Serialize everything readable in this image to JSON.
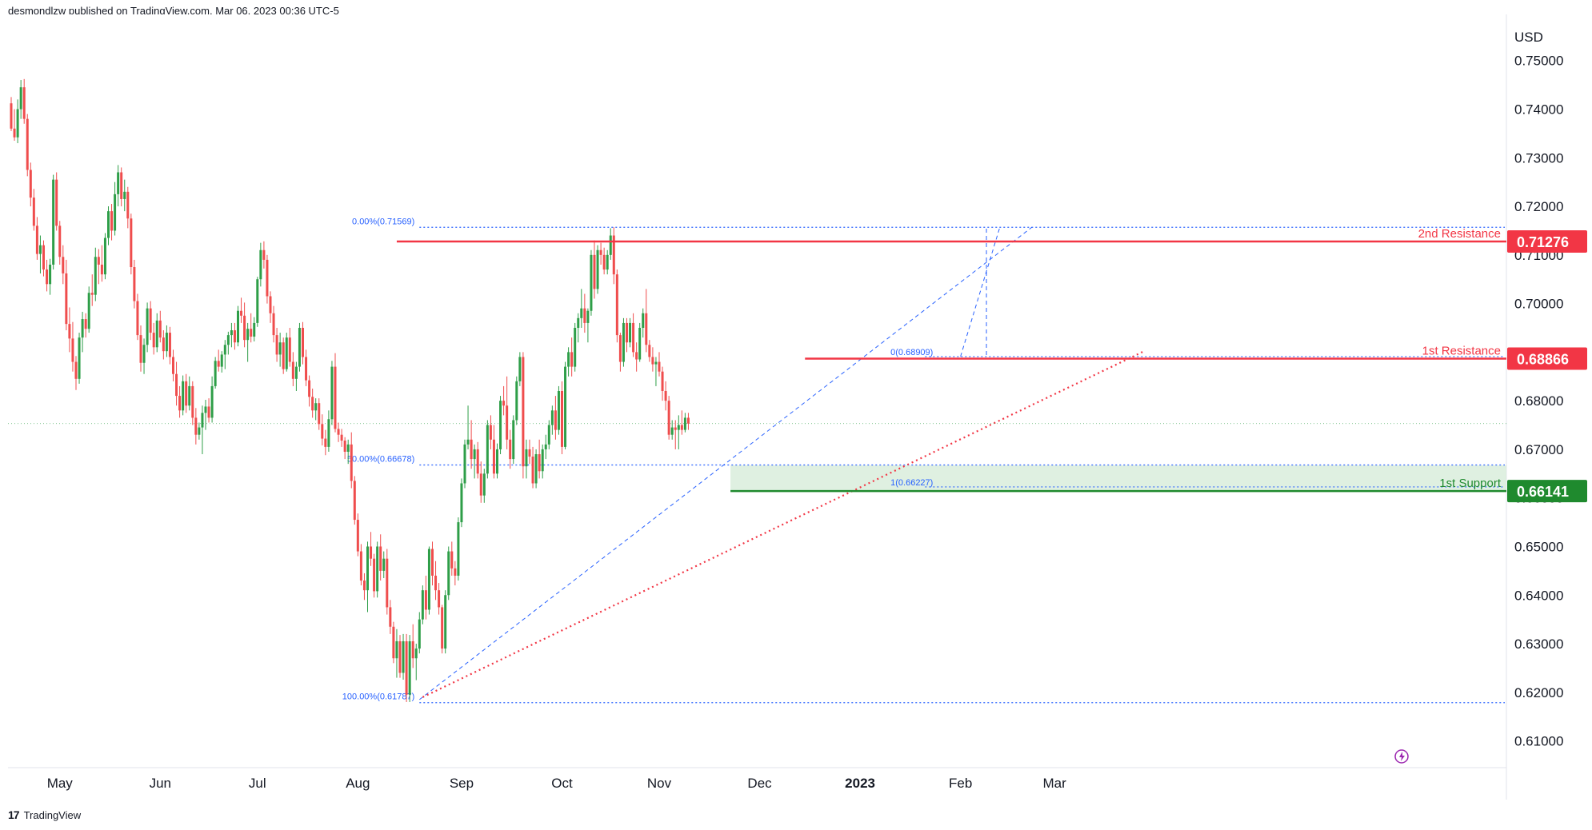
{
  "header": {
    "published": "desmondlzw published on TradingView.com, Mar 06, 2023 00:36 UTC-5"
  },
  "footer": {
    "brand": "TradingView"
  },
  "colors": {
    "up": "#2e9e48",
    "down": "#ef4d4d",
    "resistance": "#f23645",
    "support": "#1f8a2e",
    "fib": "#2962ff",
    "trend": "#f23645",
    "zone": "#d7ecd9"
  },
  "chart_data": {
    "type": "candlestick",
    "currency": "USD",
    "ylim": [
      0.6045,
      0.7595
    ],
    "y_ticks": [
      0.75,
      0.74,
      0.73,
      0.72,
      0.71,
      0.7,
      0.69,
      0.68,
      0.67,
      0.66,
      0.65,
      0.64,
      0.63,
      0.62,
      0.61
    ],
    "y_tick_labels": [
      "0.75000",
      "0.74000",
      "0.73000",
      "0.72000",
      "0.71000",
      "0.70000",
      "0.69000",
      "0.68000",
      "0.67000",
      "0.66000",
      "0.65000",
      "0.64000",
      "0.63000",
      "0.62000",
      "0.61000"
    ],
    "x_ticks": [
      {
        "label": "May",
        "index": 15,
        "bold": false
      },
      {
        "label": "Jun",
        "index": 46,
        "bold": false
      },
      {
        "label": "Jul",
        "index": 76,
        "bold": false
      },
      {
        "label": "Aug",
        "index": 107,
        "bold": false
      },
      {
        "label": "Sep",
        "index": 139,
        "bold": false
      },
      {
        "label": "Oct",
        "index": 170,
        "bold": false
      },
      {
        "label": "Nov",
        "index": 200,
        "bold": false
      },
      {
        "label": "Dec",
        "index": 231,
        "bold": false
      },
      {
        "label": "2023",
        "index": 262,
        "bold": true
      },
      {
        "label": "Feb",
        "index": 293,
        "bold": false
      },
      {
        "label": "Mar",
        "index": 322,
        "bold": false
      }
    ],
    "levels": [
      {
        "name": "2nd Resistance",
        "value": 0.71276,
        "label": "0.71276",
        "kind": "resistance",
        "from_index": 119
      },
      {
        "name": "1st Resistance",
        "value": 0.68866,
        "label": "0.68866",
        "kind": "resistance",
        "from_index": 245
      },
      {
        "name": "1st Support",
        "value": 0.66141,
        "label": "0.66141",
        "kind": "support",
        "from_index": 222
      }
    ],
    "support_zone": {
      "from": 0.6614,
      "to": 0.6667,
      "from_index": 222
    },
    "fib_top": [
      {
        "label": "0.00%(0.71569)",
        "value": 0.71569
      },
      {
        "label": "50.00%(0.66678)",
        "value": 0.66678
      },
      {
        "label": "100.00%(0.61787)",
        "value": 0.61787
      }
    ],
    "fib_small": [
      {
        "label": "0(0.68909)",
        "value": 0.68909
      },
      {
        "label": "1(0.66227)",
        "value": 0.66227
      }
    ],
    "last_price": 0.6753,
    "candles": [
      [
        0.7412,
        0.7425,
        0.7355,
        0.736
      ],
      [
        0.736,
        0.74,
        0.7335,
        0.7342
      ],
      [
        0.7342,
        0.742,
        0.733,
        0.74
      ],
      [
        0.74,
        0.746,
        0.738,
        0.7445
      ],
      [
        0.7445,
        0.7462,
        0.737,
        0.738
      ],
      [
        0.738,
        0.739,
        0.7262,
        0.7275
      ],
      [
        0.7275,
        0.729,
        0.72,
        0.7218
      ],
      [
        0.7218,
        0.7236,
        0.715,
        0.716
      ],
      [
        0.716,
        0.7178,
        0.709,
        0.7102
      ],
      [
        0.7102,
        0.714,
        0.7062,
        0.712
      ],
      [
        0.712,
        0.713,
        0.7056,
        0.707
      ],
      [
        0.707,
        0.709,
        0.7025,
        0.704
      ],
      [
        0.704,
        0.7092,
        0.7018,
        0.708
      ],
      [
        0.708,
        0.7265,
        0.707,
        0.7255
      ],
      [
        0.7255,
        0.727,
        0.715,
        0.716
      ],
      [
        0.716,
        0.717,
        0.708,
        0.7096
      ],
      [
        0.7096,
        0.712,
        0.704,
        0.7062
      ],
      [
        0.7062,
        0.709,
        0.6945,
        0.6958
      ],
      [
        0.6958,
        0.6992,
        0.69,
        0.6928
      ],
      [
        0.6928,
        0.6962,
        0.686,
        0.688
      ],
      [
        0.688,
        0.6892,
        0.6822,
        0.6845
      ],
      [
        0.6845,
        0.694,
        0.6835,
        0.693
      ],
      [
        0.693,
        0.6983,
        0.69,
        0.6968
      ],
      [
        0.6968,
        0.698,
        0.693,
        0.6948
      ],
      [
        0.6948,
        0.7035,
        0.694,
        0.7022
      ],
      [
        0.7022,
        0.706,
        0.6995,
        0.7018
      ],
      [
        0.7018,
        0.7115,
        0.7005,
        0.7096
      ],
      [
        0.7096,
        0.7112,
        0.704,
        0.708
      ],
      [
        0.708,
        0.712,
        0.7045,
        0.706
      ],
      [
        0.706,
        0.7145,
        0.705,
        0.7135
      ],
      [
        0.7135,
        0.72,
        0.712,
        0.719
      ],
      [
        0.719,
        0.7205,
        0.713,
        0.715
      ],
      [
        0.715,
        0.725,
        0.714,
        0.7225
      ],
      [
        0.7225,
        0.7285,
        0.72,
        0.727
      ],
      [
        0.727,
        0.728,
        0.72,
        0.7215
      ],
      [
        0.7215,
        0.7255,
        0.719,
        0.723
      ],
      [
        0.723,
        0.724,
        0.7155,
        0.7175
      ],
      [
        0.7175,
        0.7185,
        0.706,
        0.7075
      ],
      [
        0.7075,
        0.709,
        0.699,
        0.7005
      ],
      [
        0.7005,
        0.702,
        0.6925,
        0.6935
      ],
      [
        0.6935,
        0.6955,
        0.686,
        0.6878
      ],
      [
        0.6878,
        0.6928,
        0.6855,
        0.6915
      ],
      [
        0.6915,
        0.7002,
        0.69,
        0.699
      ],
      [
        0.699,
        0.7005,
        0.6925,
        0.694
      ],
      [
        0.694,
        0.696,
        0.6895,
        0.691
      ],
      [
        0.691,
        0.698,
        0.69,
        0.6965
      ],
      [
        0.6965,
        0.6985,
        0.692,
        0.693
      ],
      [
        0.693,
        0.6945,
        0.6885,
        0.6902
      ],
      [
        0.6902,
        0.6955,
        0.689,
        0.694
      ],
      [
        0.694,
        0.6952,
        0.6875,
        0.689
      ],
      [
        0.689,
        0.6905,
        0.684,
        0.6855
      ],
      [
        0.6855,
        0.688,
        0.679,
        0.681
      ],
      [
        0.681,
        0.683,
        0.6765,
        0.678
      ],
      [
        0.678,
        0.6852,
        0.677,
        0.684
      ],
      [
        0.684,
        0.6855,
        0.6775,
        0.679
      ],
      [
        0.679,
        0.685,
        0.678,
        0.683
      ],
      [
        0.683,
        0.684,
        0.675,
        0.6765
      ],
      [
        0.6765,
        0.6785,
        0.671,
        0.673
      ],
      [
        0.673,
        0.6755,
        0.672,
        0.6745
      ],
      [
        0.6745,
        0.679,
        0.669,
        0.6775
      ],
      [
        0.6775,
        0.6802,
        0.674,
        0.6788
      ],
      [
        0.6788,
        0.6805,
        0.6755,
        0.6765
      ],
      [
        0.6765,
        0.685,
        0.6755,
        0.683
      ],
      [
        0.683,
        0.689,
        0.6825,
        0.6882
      ],
      [
        0.6882,
        0.6905,
        0.686,
        0.687
      ],
      [
        0.687,
        0.6902,
        0.6858,
        0.6895
      ],
      [
        0.6895,
        0.6925,
        0.6865,
        0.6915
      ],
      [
        0.6915,
        0.6942,
        0.6895,
        0.6935
      ],
      [
        0.6935,
        0.696,
        0.691,
        0.6945
      ],
      [
        0.6945,
        0.696,
        0.6905,
        0.692
      ],
      [
        0.692,
        0.6995,
        0.6912,
        0.6985
      ],
      [
        0.6985,
        0.7012,
        0.696,
        0.6975
      ],
      [
        0.6975,
        0.7002,
        0.691,
        0.6925
      ],
      [
        0.6925,
        0.696,
        0.688,
        0.6948
      ],
      [
        0.6948,
        0.698,
        0.692,
        0.6932
      ],
      [
        0.6932,
        0.6972,
        0.6922,
        0.696
      ],
      [
        0.696,
        0.7055,
        0.6952,
        0.705
      ],
      [
        0.705,
        0.7125,
        0.7035,
        0.711
      ],
      [
        0.711,
        0.7128,
        0.7072,
        0.709
      ],
      [
        0.709,
        0.71,
        0.7,
        0.7015
      ],
      [
        0.7015,
        0.7025,
        0.696,
        0.698
      ],
      [
        0.698,
        0.6995,
        0.692,
        0.6935
      ],
      [
        0.6935,
        0.695,
        0.688,
        0.6895
      ],
      [
        0.6895,
        0.694,
        0.687,
        0.692
      ],
      [
        0.692,
        0.693,
        0.6855,
        0.6865
      ],
      [
        0.6865,
        0.694,
        0.686,
        0.693
      ],
      [
        0.693,
        0.695,
        0.687,
        0.688
      ],
      [
        0.688,
        0.69,
        0.683,
        0.6845
      ],
      [
        0.6845,
        0.688,
        0.682,
        0.687
      ],
      [
        0.687,
        0.696,
        0.686,
        0.695
      ],
      [
        0.695,
        0.6962,
        0.6875,
        0.689
      ],
      [
        0.689,
        0.6905,
        0.683,
        0.6842
      ],
      [
        0.6842,
        0.6852,
        0.6788,
        0.6808
      ],
      [
        0.6808,
        0.6825,
        0.6765,
        0.678
      ],
      [
        0.678,
        0.6805,
        0.676,
        0.6795
      ],
      [
        0.6795,
        0.6805,
        0.674,
        0.6752
      ],
      [
        0.6752,
        0.6772,
        0.6708,
        0.6722
      ],
      [
        0.6722,
        0.674,
        0.6688,
        0.6705
      ],
      [
        0.6705,
        0.678,
        0.6695,
        0.6762
      ],
      [
        0.6762,
        0.6882,
        0.675,
        0.687
      ],
      [
        0.687,
        0.6898,
        0.6735,
        0.6742
      ],
      [
        0.6742,
        0.6755,
        0.6715,
        0.673
      ],
      [
        0.673,
        0.6742,
        0.6705,
        0.6718
      ],
      [
        0.6718,
        0.6725,
        0.668,
        0.6695
      ],
      [
        0.6695,
        0.672,
        0.667,
        0.671
      ],
      [
        0.671,
        0.6735,
        0.662,
        0.6635
      ],
      [
        0.6635,
        0.6645,
        0.6545,
        0.6555
      ],
      [
        0.6555,
        0.6568,
        0.648,
        0.649
      ],
      [
        0.649,
        0.6505,
        0.642,
        0.643
      ],
      [
        0.643,
        0.6445,
        0.639,
        0.641
      ],
      [
        0.641,
        0.651,
        0.6365,
        0.65
      ],
      [
        0.65,
        0.653,
        0.646,
        0.6475
      ],
      [
        0.6475,
        0.6485,
        0.6395,
        0.6408
      ],
      [
        0.6408,
        0.651,
        0.6395,
        0.65
      ],
      [
        0.65,
        0.6525,
        0.643,
        0.645
      ],
      [
        0.645,
        0.649,
        0.6435,
        0.6475
      ],
      [
        0.6475,
        0.6495,
        0.636,
        0.6375
      ],
      [
        0.6375,
        0.639,
        0.632,
        0.6335
      ],
      [
        0.6335,
        0.6345,
        0.626,
        0.627
      ],
      [
        0.627,
        0.633,
        0.623,
        0.6305
      ],
      [
        0.6305,
        0.6318,
        0.623,
        0.624
      ],
      [
        0.624,
        0.632,
        0.6226,
        0.6305
      ],
      [
        0.6305,
        0.632,
        0.618,
        0.6195
      ],
      [
        0.6195,
        0.6318,
        0.618,
        0.6305
      ],
      [
        0.6305,
        0.634,
        0.625,
        0.627
      ],
      [
        0.627,
        0.63,
        0.6225,
        0.629
      ],
      [
        0.629,
        0.6365,
        0.628,
        0.635
      ],
      [
        0.635,
        0.642,
        0.634,
        0.641
      ],
      [
        0.641,
        0.644,
        0.635,
        0.637
      ],
      [
        0.637,
        0.65,
        0.636,
        0.6495
      ],
      [
        0.6495,
        0.651,
        0.642,
        0.644
      ],
      [
        0.644,
        0.647,
        0.639,
        0.641
      ],
      [
        0.641,
        0.6425,
        0.636,
        0.6375
      ],
      [
        0.6375,
        0.638,
        0.628,
        0.629
      ],
      [
        0.629,
        0.641,
        0.628,
        0.64
      ],
      [
        0.64,
        0.65,
        0.639,
        0.649
      ],
      [
        0.649,
        0.651,
        0.644,
        0.6455
      ],
      [
        0.6455,
        0.647,
        0.642,
        0.644
      ],
      [
        0.644,
        0.656,
        0.643,
        0.655
      ],
      [
        0.655,
        0.664,
        0.654,
        0.663
      ],
      [
        0.663,
        0.672,
        0.662,
        0.671
      ],
      [
        0.671,
        0.679,
        0.67,
        0.672
      ],
      [
        0.672,
        0.676,
        0.666,
        0.668
      ],
      [
        0.668,
        0.671,
        0.664,
        0.67
      ],
      [
        0.67,
        0.6715,
        0.664,
        0.665
      ],
      [
        0.665,
        0.6675,
        0.659,
        0.6605
      ],
      [
        0.6605,
        0.666,
        0.659,
        0.665
      ],
      [
        0.665,
        0.676,
        0.664,
        0.675
      ],
      [
        0.675,
        0.677,
        0.67,
        0.672
      ],
      [
        0.672,
        0.675,
        0.664,
        0.665
      ],
      [
        0.665,
        0.6712,
        0.664,
        0.67
      ],
      [
        0.67,
        0.681,
        0.669,
        0.68
      ],
      [
        0.68,
        0.683,
        0.677,
        0.679
      ],
      [
        0.679,
        0.685,
        0.67,
        0.672
      ],
      [
        0.672,
        0.674,
        0.666,
        0.668
      ],
      [
        0.668,
        0.677,
        0.667,
        0.676
      ],
      [
        0.676,
        0.685,
        0.675,
        0.684
      ],
      [
        0.684,
        0.69,
        0.683,
        0.689
      ],
      [
        0.689,
        0.69,
        0.664,
        0.6665
      ],
      [
        0.6665,
        0.672,
        0.664,
        0.67
      ],
      [
        0.67,
        0.672,
        0.667,
        0.6685
      ],
      [
        0.6685,
        0.6705,
        0.662,
        0.663
      ],
      [
        0.663,
        0.67,
        0.662,
        0.669
      ],
      [
        0.669,
        0.672,
        0.664,
        0.6655
      ],
      [
        0.6655,
        0.671,
        0.664,
        0.67
      ],
      [
        0.67,
        0.673,
        0.668,
        0.671
      ],
      [
        0.671,
        0.676,
        0.67,
        0.675
      ],
      [
        0.675,
        0.679,
        0.673,
        0.678
      ],
      [
        0.678,
        0.681,
        0.672,
        0.674
      ],
      [
        0.674,
        0.683,
        0.673,
        0.682
      ],
      [
        0.682,
        0.684,
        0.669,
        0.6705
      ],
      [
        0.6705,
        0.688,
        0.67,
        0.687
      ],
      [
        0.687,
        0.691,
        0.685,
        0.69
      ],
      [
        0.69,
        0.693,
        0.685,
        0.687
      ],
      [
        0.687,
        0.696,
        0.686,
        0.695
      ],
      [
        0.695,
        0.698,
        0.692,
        0.697
      ],
      [
        0.697,
        0.703,
        0.695,
        0.699
      ],
      [
        0.699,
        0.702,
        0.694,
        0.696
      ],
      [
        0.696,
        0.699,
        0.692,
        0.6985
      ],
      [
        0.6985,
        0.711,
        0.6975,
        0.71
      ],
      [
        0.71,
        0.713,
        0.701,
        0.703
      ],
      [
        0.703,
        0.712,
        0.702,
        0.711
      ],
      [
        0.711,
        0.7125,
        0.708,
        0.71
      ],
      [
        0.71,
        0.7115,
        0.706,
        0.707
      ],
      [
        0.707,
        0.711,
        0.706,
        0.71
      ],
      [
        0.71,
        0.7155,
        0.709,
        0.714
      ],
      [
        0.714,
        0.7157,
        0.704,
        0.706
      ],
      [
        0.706,
        0.707,
        0.692,
        0.6935
      ],
      [
        0.6935,
        0.694,
        0.686,
        0.688
      ],
      [
        0.688,
        0.697,
        0.687,
        0.696
      ],
      [
        0.696,
        0.697,
        0.69,
        0.692
      ],
      [
        0.692,
        0.697,
        0.691,
        0.696
      ],
      [
        0.696,
        0.698,
        0.689,
        0.69
      ],
      [
        0.69,
        0.692,
        0.686,
        0.6885
      ],
      [
        0.6885,
        0.696,
        0.688,
        0.695
      ],
      [
        0.695,
        0.699,
        0.693,
        0.698
      ],
      [
        0.698,
        0.703,
        0.69,
        0.6915
      ],
      [
        0.6915,
        0.6925,
        0.688,
        0.689
      ],
      [
        0.689,
        0.691,
        0.686,
        0.6875
      ],
      [
        0.6875,
        0.689,
        0.683,
        0.688
      ],
      [
        0.688,
        0.69,
        0.685,
        0.686
      ],
      [
        0.686,
        0.687,
        0.68,
        0.682
      ],
      [
        0.682,
        0.684,
        0.678,
        0.68
      ],
      [
        0.68,
        0.681,
        0.672,
        0.673
      ],
      [
        0.673,
        0.676,
        0.672,
        0.6745
      ],
      [
        0.6745,
        0.676,
        0.67,
        0.674
      ],
      [
        0.674,
        0.677,
        0.67,
        0.675
      ],
      [
        0.675,
        0.678,
        0.673,
        0.674
      ],
      [
        0.674,
        0.6775,
        0.6735,
        0.6765
      ],
      [
        0.6765,
        0.6775,
        0.674,
        0.6753
      ]
    ]
  }
}
